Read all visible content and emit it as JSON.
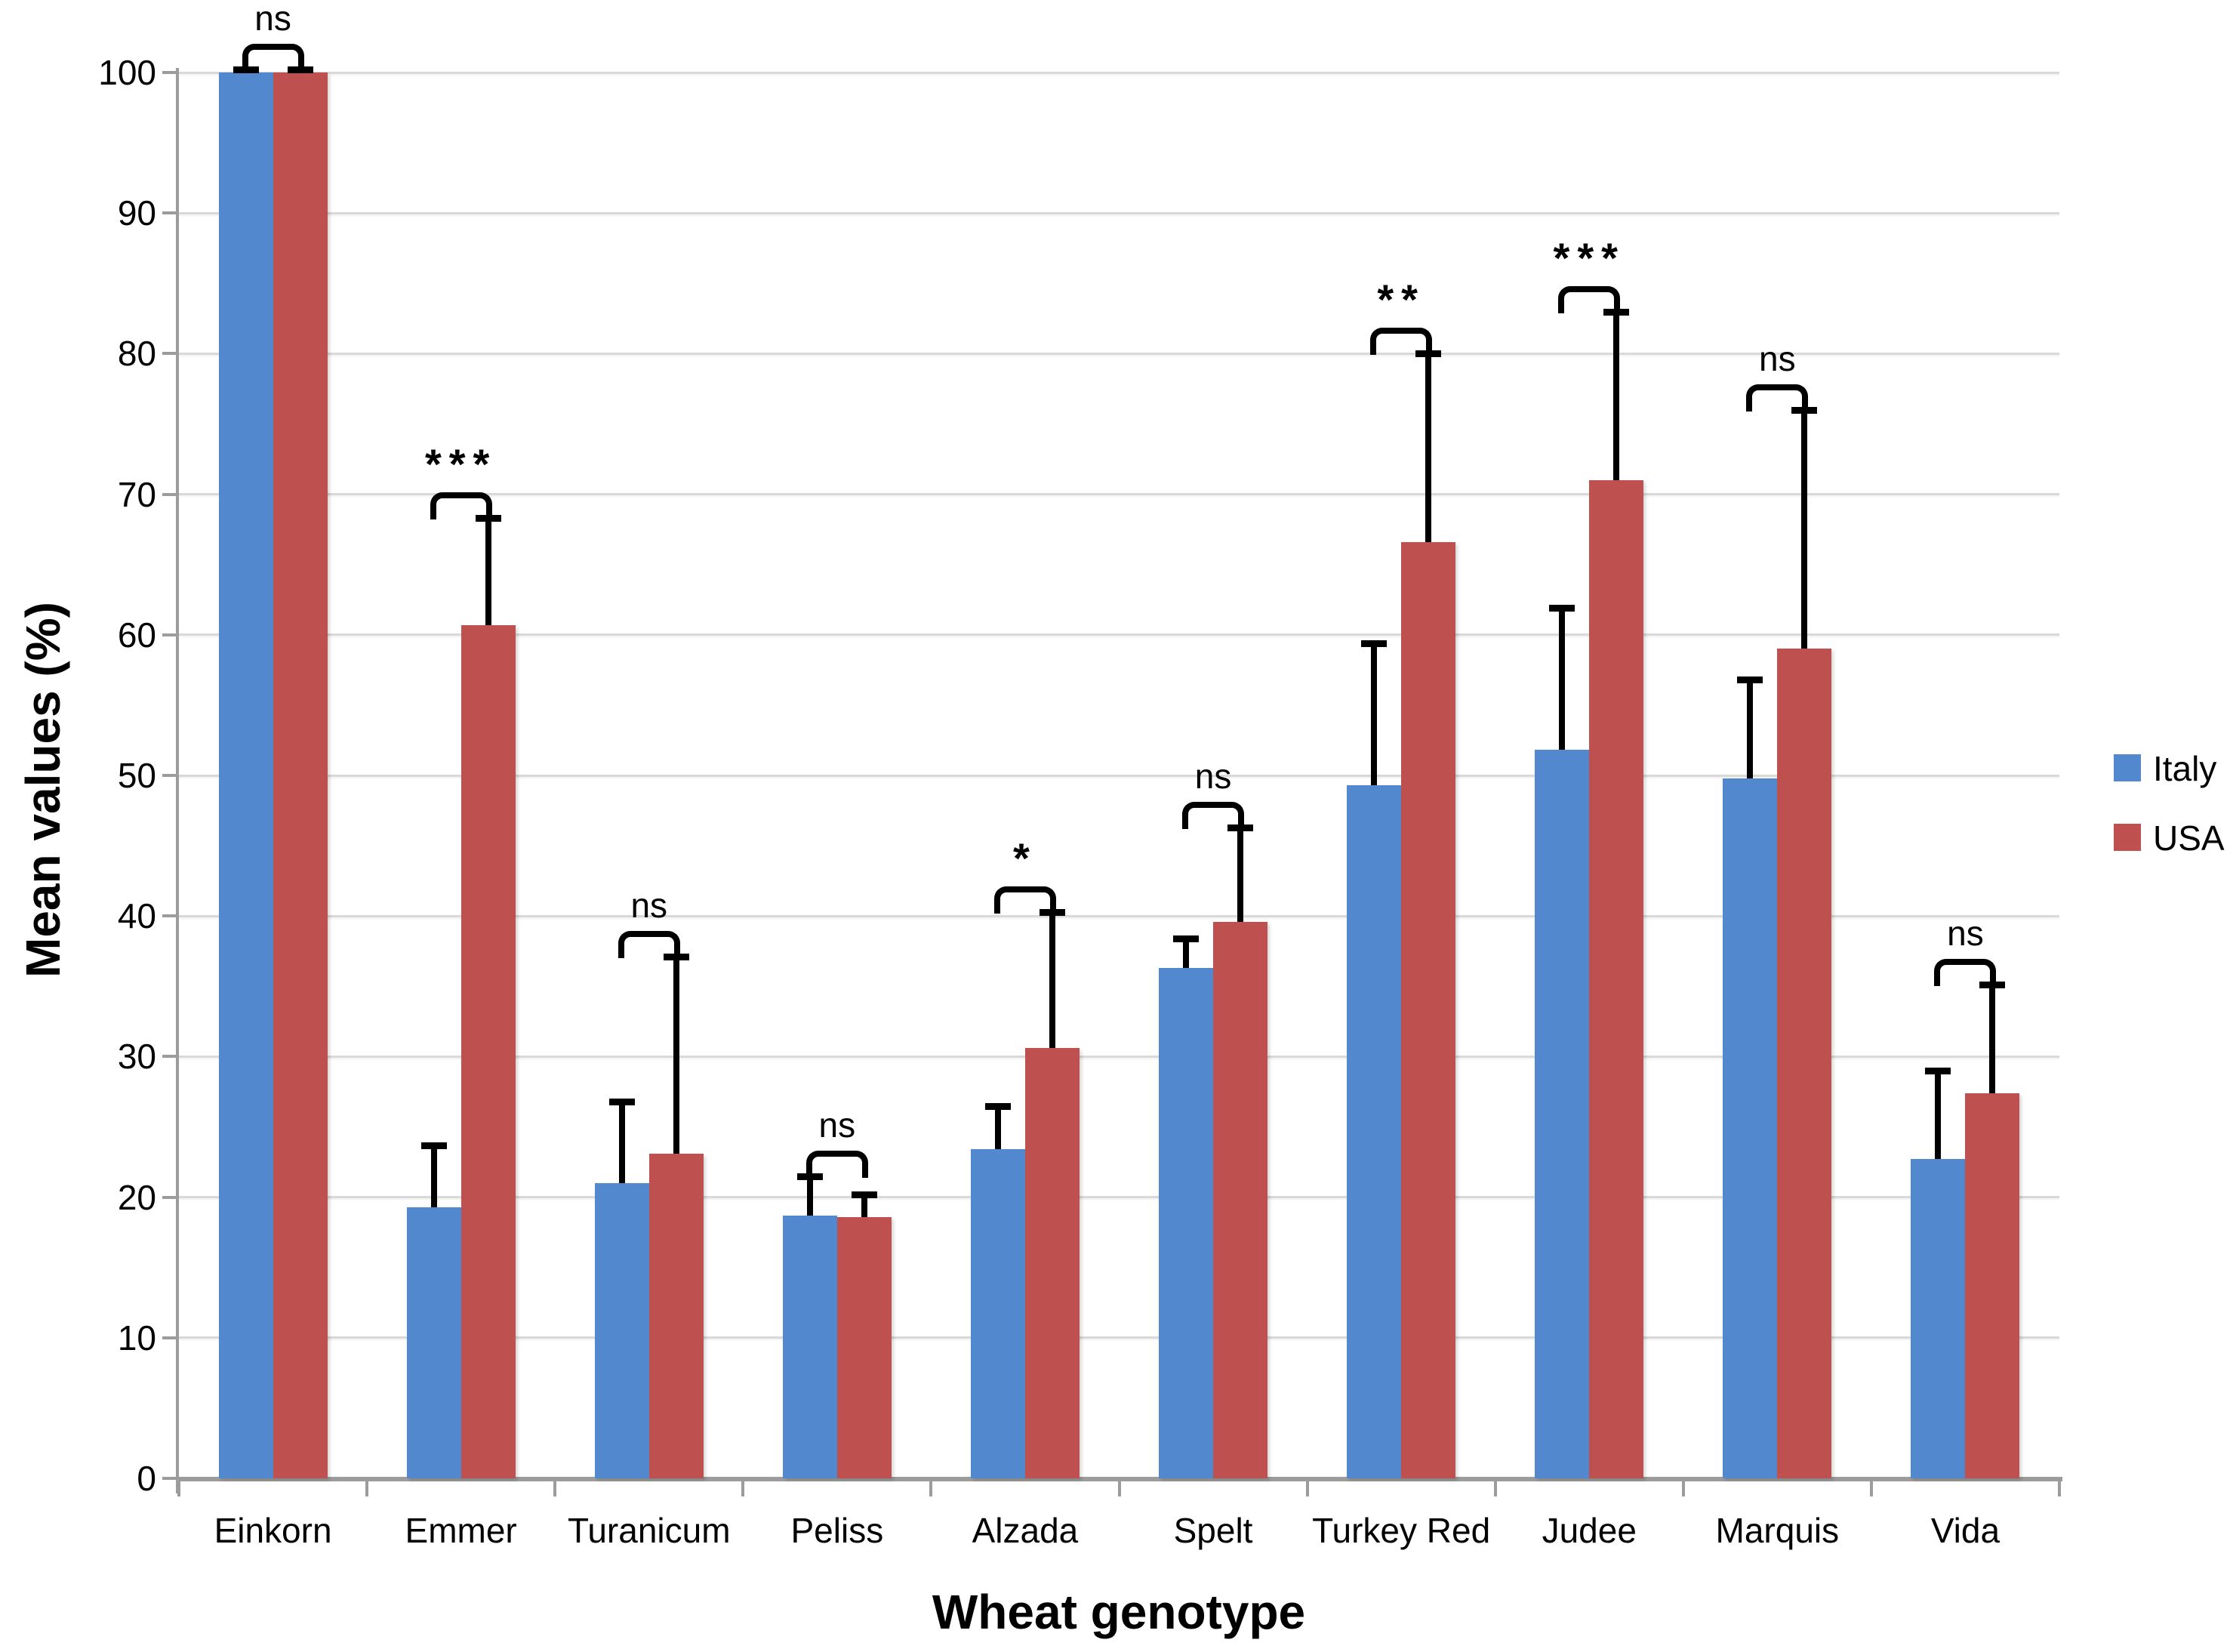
{
  "chart_data": {
    "type": "bar",
    "title": "",
    "xlabel": "Wheat genotype",
    "ylabel": "Mean values (%)",
    "categories": [
      "Einkorn",
      "Emmer",
      "Turanicum",
      "Peliss",
      "Alzada",
      "Spelt",
      "Turkey Red",
      "Judee",
      "Marquis",
      "Vida"
    ],
    "series": [
      {
        "name": "Italy",
        "color": "#5289CE",
        "values": [
          100,
          19.3,
          21.0,
          18.7,
          23.4,
          36.3,
          49.3,
          51.8,
          49.8,
          22.7
        ],
        "errors": [
          0.2,
          4.4,
          5.8,
          2.8,
          3.1,
          2.1,
          10.1,
          10.1,
          7.0,
          6.3
        ]
      },
      {
        "name": "USA",
        "color": "#BF5050",
        "values": [
          100,
          60.7,
          23.1,
          18.6,
          30.6,
          39.6,
          66.6,
          71.0,
          59.0,
          27.4
        ],
        "errors": [
          0.2,
          7.6,
          14.0,
          1.6,
          9.7,
          6.7,
          13.4,
          12.0,
          17.0,
          7.7
        ]
      }
    ],
    "significance": [
      "ns",
      "***",
      "ns",
      "ns",
      "*",
      "ns",
      "**",
      "***",
      "ns",
      "ns"
    ],
    "ylim": [
      0,
      100
    ],
    "yticks": [
      0,
      10,
      20,
      30,
      40,
      50,
      60,
      70,
      80,
      90,
      100
    ],
    "grid": true,
    "legend_position": "right",
    "error_bars": "upper-only",
    "colors": {
      "gridline": "#D9D9D9",
      "axis": "#9C9C9C",
      "error_bar": "#000000",
      "text": "#000000",
      "background": "#FFFFFF"
    }
  }
}
